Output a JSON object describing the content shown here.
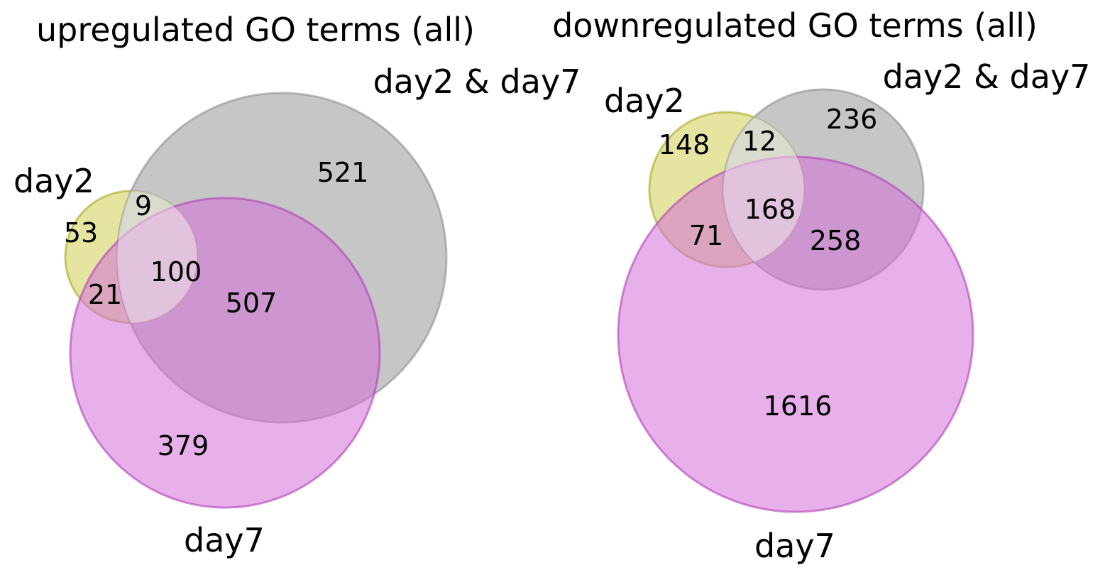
{
  "colors": {
    "day2": "#cccc44",
    "day2_and_day7": "#a6a6a6",
    "day7": "#d470d8",
    "background": "#ffffff"
  },
  "panels": [
    {
      "title": "upregulated GO terms (all)",
      "labels": {
        "day2": "day2",
        "day2_and_day7": "day2 & day7",
        "day7": "day7"
      },
      "regions": {
        "day2_only": "53",
        "day2_and_day7_label_only": "521",
        "day7_only": "379",
        "day2_x_day2_and_day7": "9",
        "day2_x_day7": "21",
        "day2_and_day7_x_day7": "507",
        "all_three": "100"
      }
    },
    {
      "title": "downregulated GO terms (all)",
      "labels": {
        "day2": "day2",
        "day2_and_day7": "day2 & day7",
        "day7": "day7"
      },
      "regions": {
        "day2_only": "148",
        "day2_and_day7_label_only": "236",
        "day7_only": "1616",
        "day2_x_day2_and_day7": "12",
        "day2_x_day7": "71",
        "day2_and_day7_x_day7": "258",
        "all_three": "168"
      }
    }
  ]
}
